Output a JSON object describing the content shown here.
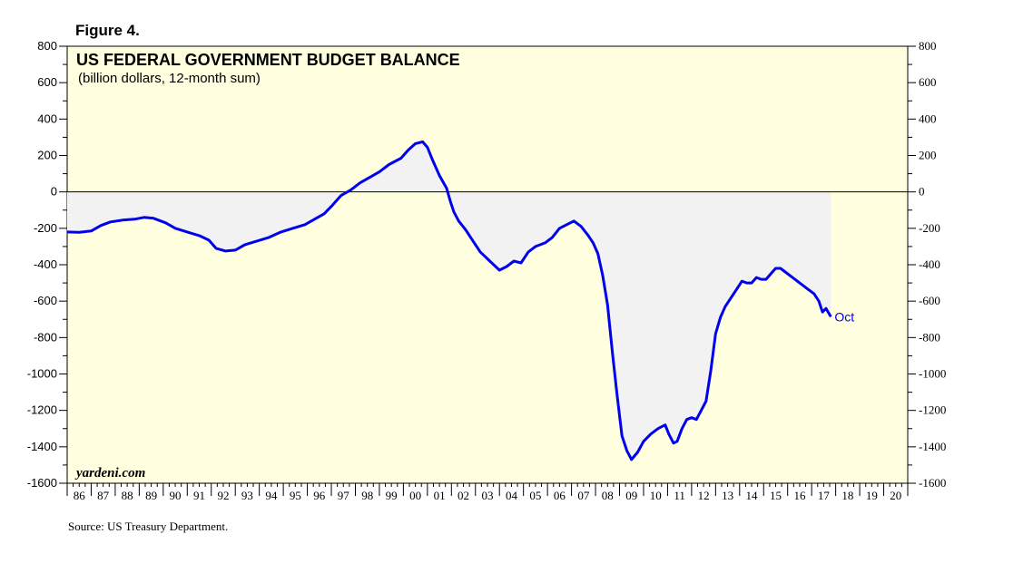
{
  "figure_label": "Figure 4.",
  "source": "Source: US Treasury Department.",
  "brand": "yardeni.com",
  "chart_data": {
    "type": "area",
    "title": "US FEDERAL GOVERNMENT BUDGET BALANCE",
    "subtitle": "(billion dollars, 12-month sum)",
    "xlabel": "",
    "ylabel": "",
    "xlim": [
      1986.0,
      2021.0
    ],
    "ylim": [
      -1600,
      800
    ],
    "yticks": [
      800,
      600,
      400,
      200,
      0,
      -200,
      -400,
      -600,
      -800,
      -1000,
      -1200,
      -1400,
      -1600
    ],
    "xtick_labels": [
      "86",
      "87",
      "88",
      "89",
      "90",
      "91",
      "92",
      "93",
      "94",
      "95",
      "96",
      "97",
      "98",
      "99",
      "00",
      "01",
      "02",
      "03",
      "04",
      "05",
      "06",
      "07",
      "08",
      "09",
      "10",
      "11",
      "12",
      "13",
      "14",
      "15",
      "16",
      "17",
      "18",
      "19",
      "20"
    ],
    "grid": false,
    "legend": "none",
    "colors": {
      "line": "#0000ee",
      "fill": "#f2f2f2",
      "background": "#ffffe0"
    },
    "annotation": {
      "text": "Oct",
      "x": 2017.8,
      "y": -686
    },
    "series": [
      {
        "x": [
          1986.0,
          1986.5,
          1987.0,
          1987.4,
          1987.8,
          1988.3,
          1988.8,
          1989.2,
          1989.6,
          1990.1,
          1990.5,
          1991.0,
          1991.5,
          1991.9,
          1992.2,
          1992.6,
          1993.0,
          1993.4,
          1993.9,
          1994.4,
          1994.9,
          1995.4,
          1995.9,
          1996.3,
          1996.7,
          1997.0,
          1997.4,
          1997.8,
          1998.2,
          1998.6,
          1999.0,
          1999.4,
          1999.9,
          2000.2,
          2000.5,
          2000.8,
          2001.0,
          2001.2,
          2001.5,
          2001.8,
          2001.95,
          2002.1,
          2002.3,
          2002.6,
          2002.9,
          2003.2,
          2003.6,
          2004.0,
          2004.3,
          2004.6,
          2004.9,
          2005.2,
          2005.5,
          2005.9,
          2006.2,
          2006.5,
          2006.8,
          2007.1,
          2007.4,
          2007.7,
          2007.9,
          2008.1,
          2008.3,
          2008.5,
          2008.7,
          2008.9,
          2009.1,
          2009.3,
          2009.5,
          2009.75,
          2010.0,
          2010.3,
          2010.6,
          2010.9,
          2011.05,
          2011.25,
          2011.4,
          2011.6,
          2011.8,
          2012.0,
          2012.2,
          2012.4,
          2012.6,
          2012.8,
          2013.0,
          2013.2,
          2013.4,
          2013.6,
          2013.9,
          2014.1,
          2014.3,
          2014.5,
          2014.7,
          2014.9,
          2015.1,
          2015.3,
          2015.5,
          2015.7,
          2015.9,
          2016.1,
          2016.3,
          2016.5,
          2016.7,
          2016.9,
          2017.1,
          2017.3,
          2017.45,
          2017.6,
          2017.8
        ],
        "y": [
          -220,
          -222,
          -215,
          -185,
          -165,
          -155,
          -150,
          -140,
          -145,
          -170,
          -200,
          -220,
          -240,
          -265,
          -310,
          -325,
          -320,
          -290,
          -270,
          -250,
          -220,
          -200,
          -180,
          -150,
          -120,
          -80,
          -20,
          10,
          50,
          80,
          110,
          150,
          185,
          230,
          265,
          275,
          245,
          180,
          90,
          20,
          -50,
          -110,
          -160,
          -210,
          -270,
          -330,
          -380,
          -430,
          -410,
          -380,
          -390,
          -330,
          -300,
          -280,
          -250,
          -200,
          -180,
          -160,
          -190,
          -240,
          -280,
          -340,
          -460,
          -620,
          -880,
          -1120,
          -1340,
          -1420,
          -1470,
          -1430,
          -1370,
          -1330,
          -1300,
          -1280,
          -1330,
          -1380,
          -1370,
          -1300,
          -1250,
          -1240,
          -1250,
          -1200,
          -1150,
          -980,
          -780,
          -690,
          -630,
          -590,
          -530,
          -490,
          -500,
          -500,
          -470,
          -480,
          -480,
          -450,
          -420,
          -420,
          -440,
          -460,
          -480,
          -500,
          -520,
          -540,
          -560,
          -600,
          -660,
          -640,
          -686
        ]
      }
    ]
  }
}
